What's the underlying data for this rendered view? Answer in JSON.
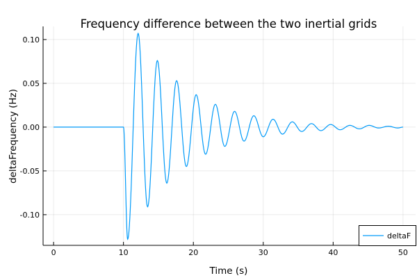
{
  "chart_data": {
    "type": "line",
    "title": "Frequency difference between the two inertial grids",
    "xlabel": "Time (s)",
    "ylabel": "deltaFrequency (Hz)",
    "xlim": [
      -1.5,
      51.8
    ],
    "ylim": [
      -0.135,
      0.115
    ],
    "xticks": [
      0,
      10,
      20,
      30,
      40,
      50
    ],
    "xtick_labels": [
      "0",
      "10",
      "20",
      "30",
      "40",
      "50"
    ],
    "yticks": [
      0.1,
      0.05,
      0.0,
      -0.05,
      -0.1
    ],
    "ytick_labels": [
      "0.10",
      "0.05",
      "0.00",
      "-0.05",
      "-0.10"
    ],
    "grid": true,
    "legend_position": "bottom-right",
    "series": [
      {
        "name": "deltaF",
        "color": "#009af9",
        "x": [
          0,
          10,
          10.6,
          12.1,
          13.45,
          14.85,
          16.2,
          17.6,
          19.0,
          20.4,
          21.75,
          23.15,
          24.5,
          25.9,
          27.25,
          28.65,
          30.0,
          31.4,
          32.75,
          34.15,
          35.5,
          36.9,
          38.25,
          39.65,
          41.0,
          42.4,
          43.75,
          45.15,
          46.5,
          47.9,
          49.25,
          50
        ],
        "y": [
          0,
          0,
          -0.128,
          0.107,
          -0.091,
          0.076,
          -0.064,
          0.053,
          -0.045,
          0.037,
          -0.031,
          0.026,
          -0.022,
          0.018,
          -0.016,
          0.013,
          -0.011,
          0.009,
          -0.008,
          0.006,
          -0.005,
          0.004,
          -0.004,
          0.003,
          -0.003,
          0.002,
          -0.002,
          0.002,
          -0.001,
          0.001,
          -0.001,
          0
        ]
      }
    ]
  }
}
